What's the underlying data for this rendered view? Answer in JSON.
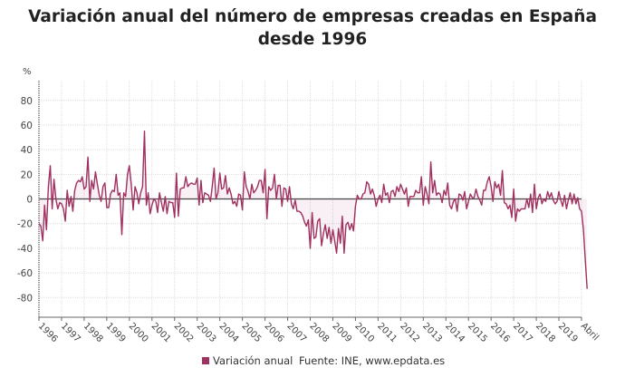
{
  "chart_data": {
    "type": "line",
    "title": "Variación anual del número de empresas creadas en España desde 1996",
    "ylabel": "%",
    "xlabel": "",
    "ylim": [
      -96,
      96
    ],
    "y_ticks": [
      80,
      60,
      40,
      20,
      0,
      -20,
      -40,
      -60,
      -80
    ],
    "x_tick_labels": [
      "1996",
      "1997",
      "1998",
      "1999",
      "2000",
      "2001",
      "2002",
      "2003",
      "2004",
      "2005",
      "2006",
      "2007",
      "2008",
      "2009",
      "2010",
      "2011",
      "2012",
      "2013",
      "2014",
      "2015",
      "2016",
      "2017",
      "2018",
      "2019",
      "Abril"
    ],
    "grid": true,
    "legend_position": "bottom",
    "series_color": "#a0305f",
    "x_start": "1996-01",
    "x_end": "2020-04",
    "frequency": "monthly",
    "series": [
      {
        "name": "Variación anual",
        "values": [
          -20,
          -22,
          -34,
          -5,
          -25,
          10,
          27,
          -8,
          16,
          0,
          -8,
          -3,
          -4,
          -8,
          -18,
          7,
          -6,
          2,
          -10,
          7,
          13,
          15,
          14,
          18,
          8,
          10,
          34,
          -2,
          15,
          8,
          22,
          12,
          3,
          -2,
          10,
          13,
          -7,
          -7,
          4,
          7,
          6,
          20,
          3,
          5,
          -29,
          5,
          2,
          20,
          27,
          12,
          -9,
          10,
          5,
          -4,
          5,
          10,
          55,
          -5,
          5,
          -12,
          -5,
          0,
          -2,
          -11,
          5,
          -3,
          -10,
          2,
          -12,
          -2,
          -3,
          -3,
          -15,
          21,
          -14,
          8,
          9,
          9,
          18,
          10,
          12,
          13,
          12,
          12,
          17,
          -5,
          15,
          -3,
          5,
          4,
          3,
          -2,
          10,
          25,
          0,
          5,
          21,
          8,
          9,
          19,
          4,
          9,
          4,
          -4,
          -2,
          -6,
          4,
          3,
          -9,
          22,
          10,
          6,
          0,
          12,
          5,
          7,
          10,
          15,
          15,
          5,
          24,
          -16,
          10,
          7,
          9,
          20,
          0,
          11,
          11,
          -6,
          9,
          8,
          -2,
          10,
          -4,
          -8,
          -1,
          -10,
          -10,
          -11,
          -14,
          -19,
          -22,
          -17,
          -40,
          -11,
          -32,
          -31,
          -18,
          -16,
          -38,
          -28,
          -21,
          -32,
          -23,
          -36,
          -25,
          -34,
          -44,
          -24,
          -36,
          -14,
          -44,
          -21,
          -19,
          -25,
          -20,
          -26,
          -6,
          3,
          0,
          0,
          4,
          5,
          14,
          12,
          4,
          8,
          3,
          -6,
          0,
          3,
          -3,
          12,
          3,
          5,
          -3,
          6,
          7,
          2,
          10,
          6,
          12,
          8,
          4,
          9,
          -6,
          2,
          2,
          2,
          7,
          5,
          5,
          18,
          -5,
          10,
          4,
          -4,
          30,
          5,
          15,
          3,
          5,
          4,
          -3,
          7,
          3,
          13,
          -5,
          -8,
          -2,
          0,
          -10,
          4,
          3,
          -1,
          6,
          -8,
          -2,
          4,
          1,
          1,
          8,
          2,
          -1,
          -5,
          7,
          7,
          14,
          18,
          10,
          -2,
          14,
          9,
          12,
          3,
          23,
          -3,
          -4,
          -8,
          -5,
          -15,
          8,
          -18,
          -8,
          -10,
          -8,
          -8,
          -8,
          0,
          -7,
          4,
          -11,
          12,
          -8,
          1,
          4,
          -4,
          0,
          -2,
          6,
          1,
          5,
          -1,
          -4,
          -2,
          6,
          -1,
          -6,
          3,
          -8,
          -1,
          5,
          -4,
          4,
          -4,
          1,
          -8,
          -10,
          -25,
          -50,
          -73
        ]
      }
    ]
  },
  "legend": {
    "series_label": "Variación anual",
    "source": "Fuente: INE, www.epdata.es"
  }
}
